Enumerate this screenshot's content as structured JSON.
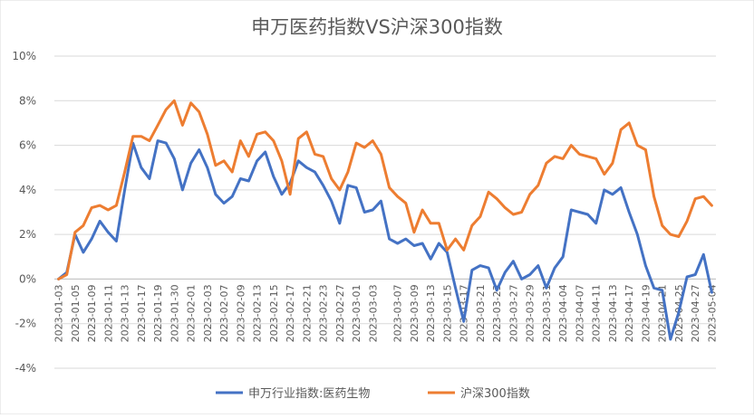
{
  "chart_data": {
    "type": "line",
    "title": "申万医药指数VS沪深300指数",
    "y_tick_labels": [
      "-4%",
      "-2%",
      "0%",
      "2%",
      "4%",
      "6%",
      "8%",
      "10%"
    ],
    "ylim": [
      -4,
      10
    ],
    "grid": "horizontal",
    "legend_position": "bottom",
    "x_tick_labels": [
      "2023-01-03",
      "2023-01-05",
      "2023-01-09",
      "2023-01-11",
      "2023-01-13",
      "2023-01-17",
      "2023-01-19",
      "2023-01-30",
      "2023-02-01",
      "2023-02-03",
      "2023-02-07",
      "2023-02-09",
      "2023-02-13",
      "2023-02-15",
      "2023-02-17",
      "2023-02-21",
      "2023-02-23",
      "2023-02-27",
      "2023-03-01",
      "2023-03-03",
      "2023-03-07",
      "2023-03-09",
      "2023-03-13",
      "2023-03-15",
      "2023-03-17",
      "2023-03-21",
      "2023-03-23",
      "2023-03-27",
      "2023-03-29",
      "2023-03-31",
      "2023-04-04",
      "2023-04-07",
      "2023-04-11",
      "2023-04-13",
      "2023-04-17",
      "2023-04-19",
      "2023-04-21",
      "2023-04-25",
      "2023-04-27",
      "2023-05-04"
    ],
    "series": [
      {
        "name": "申万行业指数:医药生物",
        "color": "#4472C4",
        "values": [
          0.0,
          0.3,
          2.0,
          1.2,
          1.8,
          2.6,
          2.1,
          1.7,
          4.0,
          6.1,
          5.0,
          4.5,
          6.2,
          6.1,
          5.4,
          4.0,
          5.2,
          5.8,
          5.0,
          3.8,
          3.4,
          3.7,
          4.5,
          4.4,
          5.3,
          5.7,
          4.6,
          3.8,
          4.3,
          5.3,
          5.0,
          4.8,
          4.2,
          3.5,
          2.5,
          4.2,
          4.1,
          3.0,
          3.1,
          3.5,
          1.8,
          1.6,
          1.8,
          1.5,
          1.6,
          0.9,
          1.6,
          1.2,
          -0.4,
          -1.9,
          0.4,
          0.6,
          0.5,
          -0.5,
          0.3,
          0.8,
          0.0,
          0.2,
          0.6,
          -0.4,
          0.5,
          1.0,
          3.1,
          3.0,
          2.9,
          2.5,
          4.0,
          3.8,
          4.1,
          3.0,
          2.0,
          0.6,
          -0.4,
          -0.5,
          -2.7,
          -1.5,
          0.1,
          0.2,
          1.1,
          -0.6
        ]
      },
      {
        "name": "沪深300指数",
        "color": "#ED7D31",
        "values": [
          0.0,
          0.2,
          2.1,
          2.4,
          3.2,
          3.3,
          3.1,
          3.3,
          4.8,
          6.4,
          6.4,
          6.2,
          6.9,
          7.6,
          8.0,
          6.9,
          7.9,
          7.5,
          6.5,
          5.1,
          5.3,
          4.8,
          6.2,
          5.5,
          6.5,
          6.6,
          6.2,
          5.3,
          3.8,
          6.3,
          6.6,
          5.6,
          5.5,
          4.5,
          4.0,
          4.8,
          6.1,
          5.9,
          6.2,
          5.6,
          4.1,
          3.7,
          3.4,
          2.1,
          3.1,
          2.5,
          2.5,
          1.3,
          1.8,
          1.3,
          2.4,
          2.8,
          3.9,
          3.6,
          3.2,
          2.9,
          3.0,
          3.8,
          4.2,
          5.2,
          5.5,
          5.4,
          6.0,
          5.6,
          5.5,
          5.4,
          4.7,
          5.2,
          6.7,
          7.0,
          6.0,
          5.8,
          3.7,
          2.4,
          2.0,
          1.9,
          2.6,
          3.6,
          3.7,
          3.3
        ]
      }
    ]
  }
}
